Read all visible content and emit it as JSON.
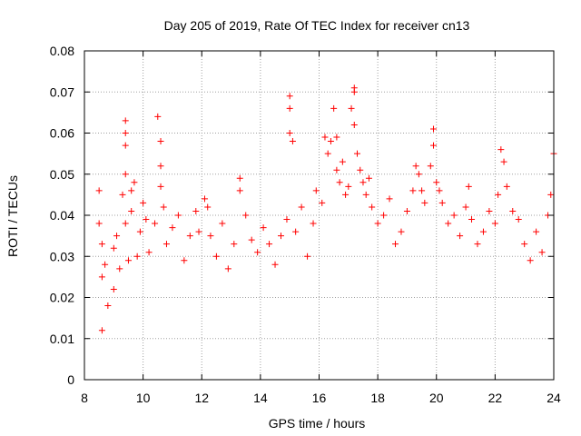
{
  "chart_data": {
    "type": "scatter",
    "title": "Day 205 of 2019, Rate Of TEC Index for receiver cn13",
    "xlabel": "GPS time / hours",
    "ylabel": "ROTI / TECUs",
    "xlim": [
      8,
      24
    ],
    "ylim": [
      0,
      0.08
    ],
    "x_ticks": [
      "8",
      "10",
      "12",
      "14",
      "16",
      "18",
      "20",
      "22",
      "24"
    ],
    "y_ticks": [
      "0",
      "0.01",
      "0.02",
      "0.03",
      "0.04",
      "0.05",
      "0.06",
      "0.07",
      "0.08"
    ],
    "grid": true,
    "marker": "+",
    "color": "#ff0000",
    "series": [
      {
        "name": "ROTI",
        "x": [
          8.5,
          8.5,
          8.6,
          8.6,
          8.6,
          8.7,
          8.8,
          9.0,
          9.0,
          9.1,
          9.2,
          9.3,
          9.4,
          9.4,
          9.4,
          9.4,
          9.4,
          9.5,
          9.6,
          9.6,
          9.7,
          9.8,
          9.9,
          10.0,
          10.1,
          10.2,
          10.4,
          10.5,
          10.6,
          10.6,
          10.6,
          10.7,
          10.8,
          11.0,
          11.2,
          11.4,
          11.6,
          11.8,
          11.9,
          12.1,
          12.2,
          12.3,
          12.5,
          12.7,
          12.9,
          13.1,
          13.3,
          13.3,
          13.5,
          13.7,
          13.9,
          14.1,
          14.3,
          14.5,
          14.7,
          14.9,
          15.0,
          15.0,
          15.0,
          15.1,
          15.2,
          15.4,
          15.6,
          15.8,
          15.9,
          16.1,
          16.2,
          16.3,
          16.4,
          16.5,
          16.6,
          16.6,
          16.7,
          16.8,
          16.9,
          17.0,
          17.1,
          17.2,
          17.2,
          17.2,
          17.3,
          17.4,
          17.5,
          17.6,
          17.7,
          17.8,
          18.0,
          18.2,
          18.4,
          18.6,
          18.8,
          19.0,
          19.2,
          19.3,
          19.4,
          19.5,
          19.6,
          19.8,
          19.9,
          19.9,
          20.0,
          20.1,
          20.2,
          20.4,
          20.6,
          20.8,
          21.0,
          21.1,
          21.2,
          21.4,
          21.6,
          21.8,
          22.0,
          22.1,
          22.2,
          22.3,
          22.4,
          22.6,
          22.8,
          23.0,
          23.2,
          23.4,
          23.6,
          23.8,
          23.9,
          24.0
        ],
        "y": [
          0.046,
          0.038,
          0.033,
          0.025,
          0.012,
          0.028,
          0.018,
          0.032,
          0.022,
          0.035,
          0.027,
          0.045,
          0.063,
          0.06,
          0.057,
          0.05,
          0.038,
          0.029,
          0.046,
          0.041,
          0.048,
          0.03,
          0.036,
          0.043,
          0.039,
          0.031,
          0.038,
          0.064,
          0.058,
          0.052,
          0.047,
          0.042,
          0.033,
          0.037,
          0.04,
          0.029,
          0.035,
          0.041,
          0.036,
          0.044,
          0.042,
          0.035,
          0.03,
          0.038,
          0.027,
          0.033,
          0.049,
          0.046,
          0.04,
          0.034,
          0.031,
          0.037,
          0.033,
          0.028,
          0.035,
          0.039,
          0.069,
          0.066,
          0.06,
          0.058,
          0.036,
          0.042,
          0.03,
          0.038,
          0.046,
          0.043,
          0.059,
          0.055,
          0.058,
          0.066,
          0.059,
          0.051,
          0.048,
          0.053,
          0.045,
          0.047,
          0.066,
          0.071,
          0.07,
          0.062,
          0.055,
          0.051,
          0.048,
          0.045,
          0.049,
          0.042,
          0.038,
          0.04,
          0.044,
          0.033,
          0.036,
          0.041,
          0.046,
          0.052,
          0.05,
          0.046,
          0.043,
          0.052,
          0.061,
          0.057,
          0.048,
          0.046,
          0.043,
          0.038,
          0.04,
          0.035,
          0.042,
          0.047,
          0.039,
          0.033,
          0.036,
          0.041,
          0.038,
          0.045,
          0.056,
          0.053,
          0.047,
          0.041,
          0.039,
          0.033,
          0.029,
          0.036,
          0.031,
          0.04,
          0.045,
          0.055
        ]
      }
    ]
  }
}
